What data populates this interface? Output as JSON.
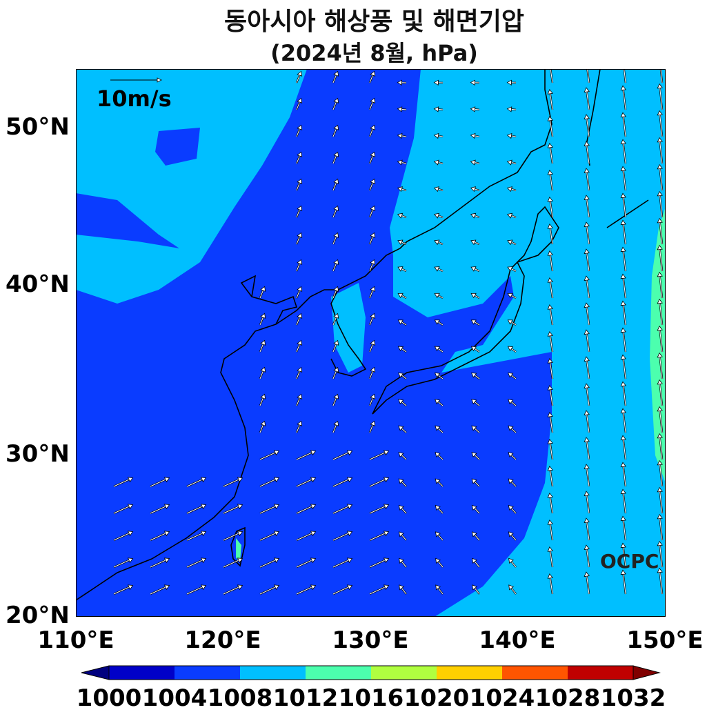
{
  "title": {
    "line1": "동아시아 해상풍 및 해면기압",
    "line2": "(2024년 8월, hPa)"
  },
  "map": {
    "lat_labels": [
      "50°N",
      "40°N",
      "30°N",
      "20°N"
    ],
    "lon_labels": [
      "110°E",
      "120°E",
      "130°E",
      "140°E",
      "150°E"
    ],
    "lon_range": [
      110,
      150
    ],
    "lat_range": [
      20,
      53.5
    ],
    "reference_vector": "10m/s",
    "watermark": "OCPC",
    "background_level_color": "#00BFFF",
    "low_pressure_color": "#0A3CFF",
    "high_pressure_strip_color": "#4CFFAE"
  },
  "colorbar": {
    "levels": [
      "1000",
      "1004",
      "1008",
      "1012",
      "1016",
      "1020",
      "1024",
      "1028",
      "1032"
    ],
    "colors": [
      "#0000C8",
      "#0A3CFF",
      "#00BFFF",
      "#4CFFAE",
      "#B0FF40",
      "#FFD000",
      "#FF5500",
      "#C00000"
    ],
    "under_color": "#00007F",
    "over_color": "#800000"
  }
}
